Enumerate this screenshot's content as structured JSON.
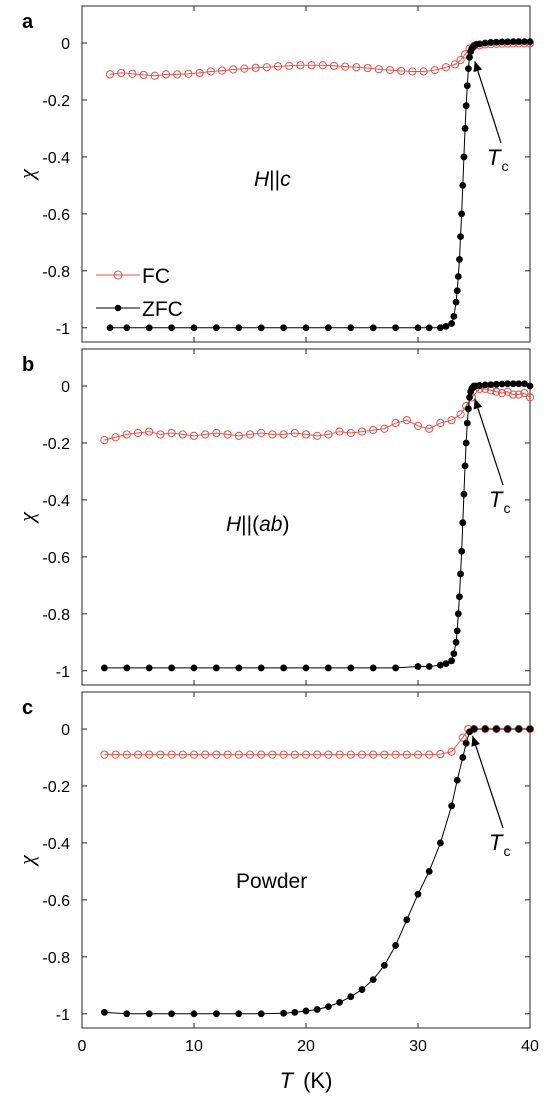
{
  "chart_data": [
    {
      "type": "scatter",
      "panel": "a",
      "ylabel": "χ",
      "annotation": {
        "pre": "H",
        "rest": "||",
        "var": "c",
        "post": ""
      },
      "tc_main": "T",
      "tc_sub": "c",
      "tc_point": [
        34.8,
        -0.05
      ],
      "xlim": [
        0,
        40
      ],
      "ylim": [
        -1.05,
        0.13
      ],
      "yticks": [
        0,
        -0.2,
        -0.4,
        -0.6,
        -0.8,
        -1
      ],
      "legend": [
        {
          "name": "FC",
          "color": "#e8504b",
          "marker": "open-circle"
        },
        {
          "name": "ZFC",
          "color": "#000000",
          "marker": "filled-circle"
        }
      ],
      "series": [
        {
          "name": "FC",
          "color": "#e8504b",
          "marker": "open-circle",
          "x": [
            2.5,
            3.5,
            4.5,
            5.5,
            6.5,
            7.5,
            8.5,
            9.5,
            10.5,
            11.5,
            12.5,
            13.5,
            14.5,
            15.5,
            16.5,
            17.5,
            18.5,
            19.5,
            20.5,
            21.5,
            22.5,
            23.5,
            24.5,
            25.5,
            26.5,
            27.5,
            28.5,
            29.5,
            30.5,
            31.5,
            32.5,
            33.3,
            33.8,
            34.2,
            34.6,
            35.0,
            35.5,
            36,
            36.5,
            37,
            37.5,
            38,
            38.5,
            39,
            39.5,
            40
          ],
          "y": [
            -0.11,
            -0.105,
            -0.108,
            -0.112,
            -0.115,
            -0.11,
            -0.11,
            -0.108,
            -0.105,
            -0.1,
            -0.097,
            -0.093,
            -0.09,
            -0.087,
            -0.085,
            -0.082,
            -0.08,
            -0.078,
            -0.078,
            -0.078,
            -0.08,
            -0.083,
            -0.085,
            -0.088,
            -0.092,
            -0.095,
            -0.098,
            -0.1,
            -0.1,
            -0.095,
            -0.085,
            -0.075,
            -0.06,
            -0.04,
            -0.02,
            -0.01,
            -0.008,
            -0.005,
            -0.004,
            -0.003,
            -0.002,
            -0.002,
            -0.001,
            -0.001,
            -0.001,
            -0.001
          ]
        },
        {
          "name": "ZFC",
          "color": "#000000",
          "marker": "filled-circle",
          "x": [
            2.5,
            4,
            6,
            8,
            10,
            12,
            14,
            16,
            18,
            20,
            22,
            24,
            26,
            28,
            30,
            31,
            32,
            32.5,
            33,
            33.2,
            33.4,
            33.5,
            33.6,
            33.7,
            33.8,
            33.9,
            34.0,
            34.1,
            34.2,
            34.3,
            34.4,
            34.5,
            34.6,
            34.7,
            34.8,
            34.9,
            35.0,
            35.2,
            35.5,
            36,
            36.5,
            37,
            37.5,
            38,
            38.5,
            39,
            39.5,
            40
          ],
          "y": [
            -1.0,
            -1.0,
            -1.0,
            -1.0,
            -1.0,
            -1.0,
            -1.0,
            -1.0,
            -1.0,
            -1.0,
            -1.0,
            -1.0,
            -1.0,
            -1.0,
            -1.0,
            -1.0,
            -1.0,
            -0.995,
            -0.985,
            -0.96,
            -0.91,
            -0.87,
            -0.82,
            -0.76,
            -0.68,
            -0.6,
            -0.5,
            -0.4,
            -0.3,
            -0.22,
            -0.15,
            -0.09,
            -0.05,
            -0.03,
            -0.02,
            -0.015,
            -0.01,
            -0.005,
            -0.003,
            0.0,
            0.002,
            0.003,
            0.004,
            0.004,
            0.005,
            0.005,
            0.005,
            0.005
          ]
        }
      ]
    },
    {
      "type": "scatter",
      "panel": "b",
      "ylabel": "χ",
      "annotation": {
        "pre": "H",
        "rest": "||(",
        "var": "ab",
        "post": ")"
      },
      "tc_main": "T",
      "tc_sub": "c",
      "tc_point": [
        34.8,
        -0.03
      ],
      "xlim": [
        0,
        40
      ],
      "ylim": [
        -1.05,
        0.13
      ],
      "yticks": [
        0,
        -0.2,
        -0.4,
        -0.6,
        -0.8,
        -1
      ],
      "series": [
        {
          "name": "FC",
          "color": "#e8504b",
          "marker": "open-circle",
          "x": [
            2,
            3,
            4,
            5,
            6,
            7,
            8,
            9,
            10,
            11,
            12,
            13,
            14,
            15,
            16,
            17,
            18,
            19,
            20,
            21,
            22,
            23,
            24,
            25,
            26,
            27,
            28,
            29,
            30,
            31,
            32,
            33,
            33.8,
            34.3,
            34.8,
            35.5,
            36,
            36.5,
            37,
            37.5,
            38,
            38.5,
            39,
            39.5,
            40
          ],
          "y": [
            -0.19,
            -0.18,
            -0.17,
            -0.165,
            -0.16,
            -0.17,
            -0.165,
            -0.17,
            -0.175,
            -0.17,
            -0.165,
            -0.17,
            -0.175,
            -0.17,
            -0.165,
            -0.17,
            -0.17,
            -0.165,
            -0.17,
            -0.175,
            -0.17,
            -0.16,
            -0.165,
            -0.16,
            -0.155,
            -0.15,
            -0.13,
            -0.12,
            -0.14,
            -0.15,
            -0.13,
            -0.12,
            -0.1,
            -0.07,
            -0.04,
            -0.01,
            -0.01,
            -0.015,
            -0.02,
            -0.025,
            -0.02,
            -0.03,
            -0.03,
            -0.025,
            -0.04
          ]
        },
        {
          "name": "ZFC",
          "color": "#000000",
          "marker": "filled-circle",
          "x": [
            2,
            4,
            6,
            8,
            10,
            12,
            14,
            16,
            18,
            20,
            22,
            24,
            26,
            28,
            30,
            31,
            32,
            32.5,
            33,
            33.2,
            33.4,
            33.5,
            33.6,
            33.7,
            33.8,
            33.9,
            34.0,
            34.1,
            34.2,
            34.3,
            34.4,
            34.5,
            34.6,
            34.7,
            34.8,
            34.9,
            35.0,
            35.2,
            35.5,
            36,
            36.5,
            37,
            37.5,
            38,
            38.5,
            39,
            39.5,
            40
          ],
          "y": [
            -0.99,
            -0.99,
            -0.99,
            -0.99,
            -0.99,
            -0.99,
            -0.99,
            -0.99,
            -0.99,
            -0.99,
            -0.99,
            -0.99,
            -0.99,
            -0.99,
            -0.985,
            -0.985,
            -0.98,
            -0.975,
            -0.965,
            -0.94,
            -0.9,
            -0.86,
            -0.8,
            -0.74,
            -0.66,
            -0.58,
            -0.48,
            -0.38,
            -0.28,
            -0.2,
            -0.13,
            -0.08,
            -0.04,
            -0.02,
            -0.01,
            -0.005,
            0.0,
            0.0,
            0.002,
            0.004,
            0.005,
            0.006,
            0.007,
            0.008,
            0.008,
            0.008,
            0.008,
            0.0
          ]
        }
      ]
    },
    {
      "type": "scatter",
      "panel": "c",
      "ylabel": "χ",
      "annotation": {
        "pre": "",
        "rest": "Powder",
        "var": "",
        "post": ""
      },
      "tc_main": "T",
      "tc_sub": "c",
      "tc_point": [
        34.6,
        -0.01
      ],
      "xlim": [
        0,
        40
      ],
      "ylim": [
        -1.05,
        0.13
      ],
      "yticks": [
        0,
        -0.2,
        -0.4,
        -0.6,
        -0.8,
        -1
      ],
      "xticks": [
        0,
        10,
        20,
        30,
        40
      ],
      "xlabel_var": "T",
      "xlabel_unit": "(K)",
      "series": [
        {
          "name": "FC",
          "color": "#e8504b",
          "marker": "open-circle",
          "x": [
            2,
            3,
            4,
            5,
            6,
            7,
            8,
            9,
            10,
            11,
            12,
            13,
            14,
            15,
            16,
            17,
            18,
            19,
            20,
            21,
            22,
            23,
            24,
            25,
            26,
            27,
            28,
            29,
            30,
            31,
            32,
            33,
            34,
            34.5,
            35,
            36,
            37,
            38,
            39,
            40
          ],
          "y": [
            -0.09,
            -0.09,
            -0.09,
            -0.09,
            -0.09,
            -0.09,
            -0.09,
            -0.09,
            -0.09,
            -0.09,
            -0.09,
            -0.09,
            -0.09,
            -0.09,
            -0.09,
            -0.09,
            -0.09,
            -0.09,
            -0.09,
            -0.09,
            -0.09,
            -0.09,
            -0.09,
            -0.09,
            -0.09,
            -0.09,
            -0.09,
            -0.09,
            -0.09,
            -0.09,
            -0.088,
            -0.08,
            -0.03,
            0.0,
            0.0,
            0.0,
            0.0,
            0.0,
            0.0,
            0.0
          ]
        },
        {
          "name": "ZFC",
          "color": "#000000",
          "marker": "filled-circle",
          "x": [
            2,
            4,
            6,
            8,
            10,
            12,
            14,
            16,
            18,
            19,
            20,
            21,
            22,
            23,
            24,
            25,
            26,
            27,
            28,
            29,
            30,
            31,
            32,
            33,
            33.5,
            34,
            34.3,
            34.6,
            35,
            36,
            37,
            38,
            39,
            40
          ],
          "y": [
            -0.995,
            -1.0,
            -1.0,
            -1.0,
            -1.0,
            -1.0,
            -1.0,
            -1.0,
            -0.998,
            -0.995,
            -0.99,
            -0.985,
            -0.975,
            -0.96,
            -0.94,
            -0.915,
            -0.88,
            -0.83,
            -0.76,
            -0.67,
            -0.58,
            -0.5,
            -0.4,
            -0.27,
            -0.18,
            -0.1,
            -0.05,
            -0.01,
            0.0,
            0.0,
            0.0,
            0.0,
            0.0,
            0.0
          ]
        }
      ]
    }
  ]
}
